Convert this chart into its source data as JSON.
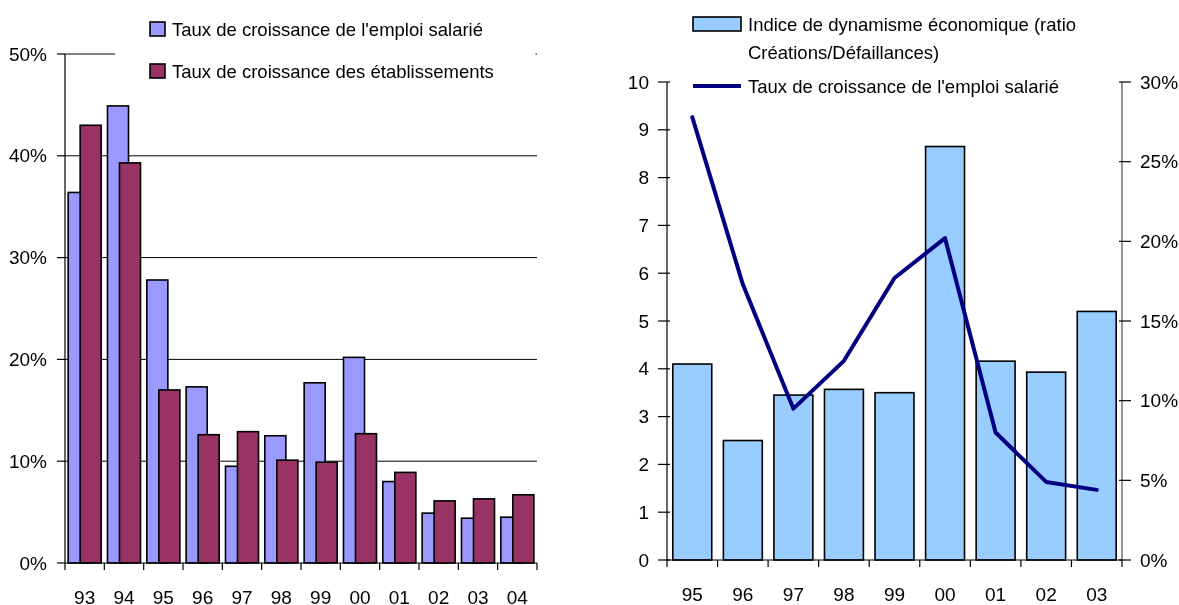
{
  "chart_data": [
    {
      "type": "bar",
      "categories": [
        "93",
        "94",
        "95",
        "96",
        "97",
        "98",
        "99",
        "00",
        "01",
        "02",
        "03",
        "04"
      ],
      "series": [
        {
          "name": "Taux de croissance de l'emploi salarié",
          "color": "#9999ff",
          "values": [
            36.4,
            44.9,
            27.8,
            17.3,
            9.5,
            12.5,
            17.7,
            20.2,
            8.0,
            4.9,
            4.4,
            4.5
          ]
        },
        {
          "name": "Taux de croissance des établissements",
          "color": "#993366",
          "values": [
            43.0,
            39.3,
            17.0,
            12.6,
            12.9,
            10.1,
            9.9,
            12.7,
            8.9,
            6.1,
            6.3,
            6.7
          ]
        }
      ],
      "ylim": [
        0,
        50
      ],
      "yticks": [
        {
          "value": 0,
          "label": "0%"
        },
        {
          "value": 10,
          "label": "10%"
        },
        {
          "value": 20,
          "label": "20%"
        },
        {
          "value": 30,
          "label": "30%"
        },
        {
          "value": 40,
          "label": "40%"
        },
        {
          "value": 50,
          "label": "50%"
        }
      ],
      "grid": "y",
      "legend": "top"
    },
    {
      "type": "bar",
      "categories": [
        "95",
        "96",
        "97",
        "98",
        "99",
        "00",
        "01",
        "02",
        "03"
      ],
      "series": [
        {
          "name": "Indice de dynamisme économique (ratio Créations/Défaillances)",
          "color": "#99ccff",
          "values": [
            4.1,
            2.5,
            3.45,
            3.57,
            3.5,
            8.65,
            4.16,
            3.93,
            5.2
          ]
        },
        {
          "name": "Taux de croissance de l'emploi salarié",
          "type": "line",
          "axis": "y2",
          "color": "#000080",
          "values": [
            27.8,
            17.3,
            9.5,
            12.5,
            17.7,
            20.2,
            8.0,
            4.9,
            4.4
          ]
        }
      ],
      "ylim": [
        0,
        10
      ],
      "yticks": [
        0,
        1,
        2,
        3,
        4,
        5,
        6,
        7,
        8,
        9,
        10
      ],
      "y2lim": [
        0,
        30
      ],
      "y2ticks": [
        {
          "value": 0,
          "label": "0%"
        },
        {
          "value": 5,
          "label": "5%"
        },
        {
          "value": 10,
          "label": "10%"
        },
        {
          "value": 15,
          "label": "15%"
        },
        {
          "value": 20,
          "label": "20%"
        },
        {
          "value": 25,
          "label": "25%"
        },
        {
          "value": 30,
          "label": "30%"
        }
      ],
      "grid": false,
      "legend": "top"
    }
  ]
}
